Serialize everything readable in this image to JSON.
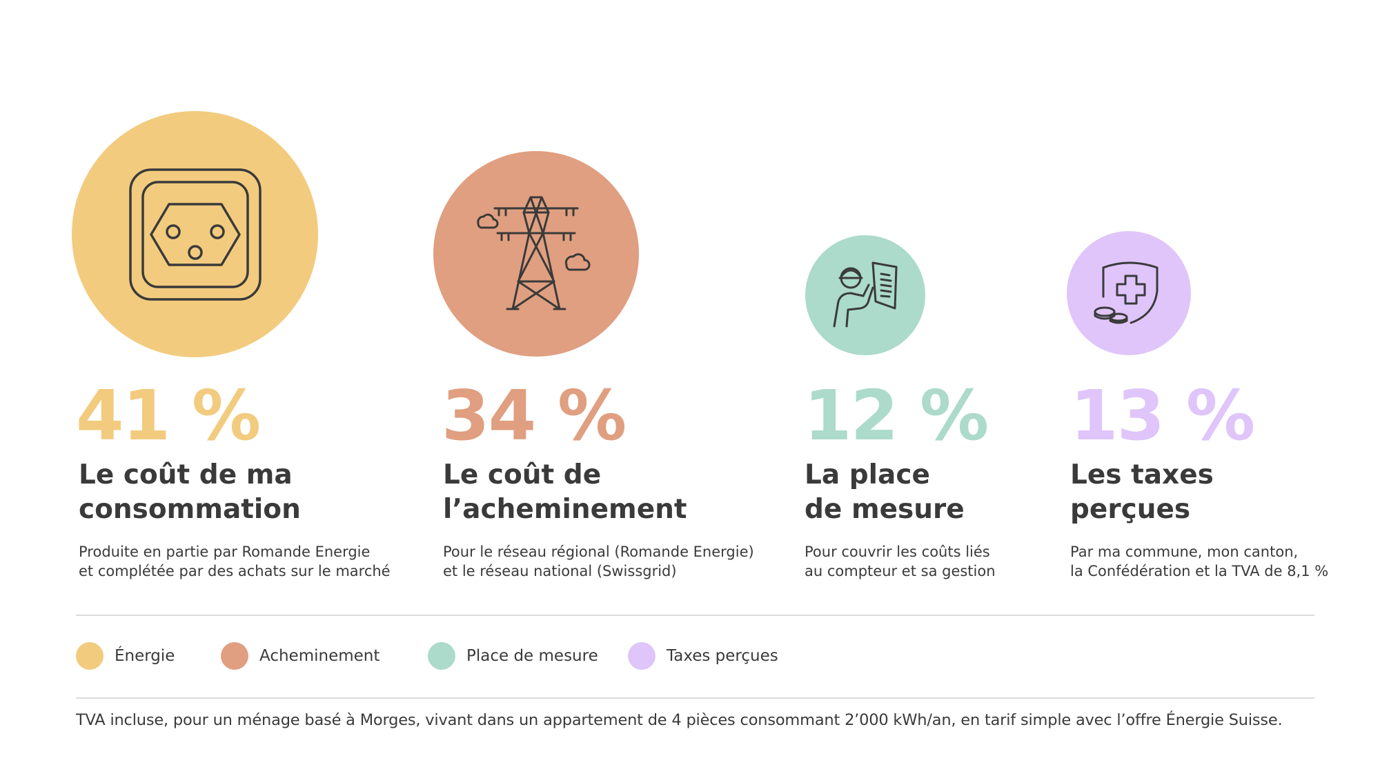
{
  "chart_data": {
    "type": "bar",
    "categories": [
      "Énergie",
      "Acheminement",
      "Place de mesure",
      "Taxes perçues"
    ],
    "values": [
      41,
      34,
      12,
      13
    ],
    "value_labels": [
      "41 %",
      "34 %",
      "12 %",
      "13 %"
    ],
    "unit": "%",
    "legend_position": "bottom-left"
  },
  "colors": {
    "energie": "#f2cb7f",
    "acheminement": "#e09f80",
    "mesure": "#acdacb",
    "taxes": "#dfc5fa",
    "text": "#3a3a3a"
  },
  "items": [
    {
      "icon": "power-socket-icon",
      "percent_label": "41 %",
      "title_line1": "Le coût de ma",
      "title_line2": "consommation",
      "desc_line1": "Produite en partie par Romande Energie",
      "desc_line2": "et complétée par des achats sur le marché"
    },
    {
      "icon": "power-pylon-icon",
      "percent_label": "34 %",
      "title_line1": "Le coût de",
      "title_line2": "l’acheminement",
      "desc_line1": "Pour le réseau régional (Romande Energie)",
      "desc_line2": "et le réseau national (Swissgrid)"
    },
    {
      "icon": "technician-icon",
      "percent_label": "12 %",
      "title_line1": "La place",
      "title_line2": "de mesure",
      "desc_line1": "Pour couvrir les coûts liés",
      "desc_line2": "au compteur et sa gestion"
    },
    {
      "icon": "shield-coins-icon",
      "percent_label": "13 %",
      "title_line1": "Les taxes",
      "title_line2": "perçues",
      "desc_line1": "Par ma commune, mon canton,",
      "desc_line2": "la Confédération et la TVA de 8,1 %"
    }
  ],
  "legend": [
    {
      "label": "Énergie"
    },
    {
      "label": "Acheminement"
    },
    {
      "label": "Place de mesure"
    },
    {
      "label": "Taxes perçues"
    }
  ],
  "footnote": "TVA incluse, pour un ménage basé à Morges, vivant dans un appartement de 4 pièces consommant 2’000 kWh/an, en tarif simple avec l’offre Énergie Suisse."
}
